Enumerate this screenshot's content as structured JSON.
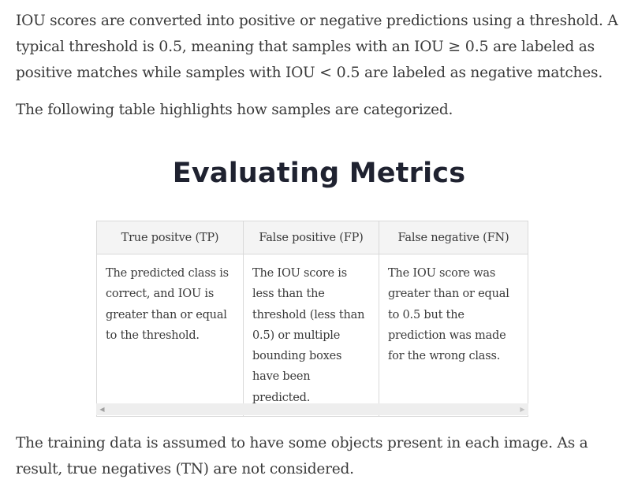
{
  "intro": {
    "segments": [
      "IOU scores are converted into positive or negative predictions using a threshold. A typical threshold is ",
      "0.5",
      ", meaning that samples with an IOU ",
      "≥ 0.5",
      " are labeled as positive matches while samples with IOU ",
      "< 0.5",
      " are labeled as negative matches."
    ]
  },
  "table_intro": "The following table highlights how samples are categorized.",
  "section_title": "Evaluating Metrics",
  "table": {
    "headers": [
      "True positve (TP)",
      "False positive (FP)",
      "False negative (FN)"
    ],
    "rows": [
      [
        "The predicted class is correct, and IOU is greater than or equal to the threshold.",
        "The IOU score is less than the threshold (less than 0.5) or multiple bounding boxes have been predicted.",
        "The IOU score was greater than or equal to 0.5 but the prediction was made for the wrong class."
      ]
    ]
  },
  "scrollbar": {
    "left_arrow": "◀",
    "right_arrow": "▶"
  },
  "conclusion": "The training data is assumed to have some objects present in each image. As a result, true negatives (TN) are not considered."
}
